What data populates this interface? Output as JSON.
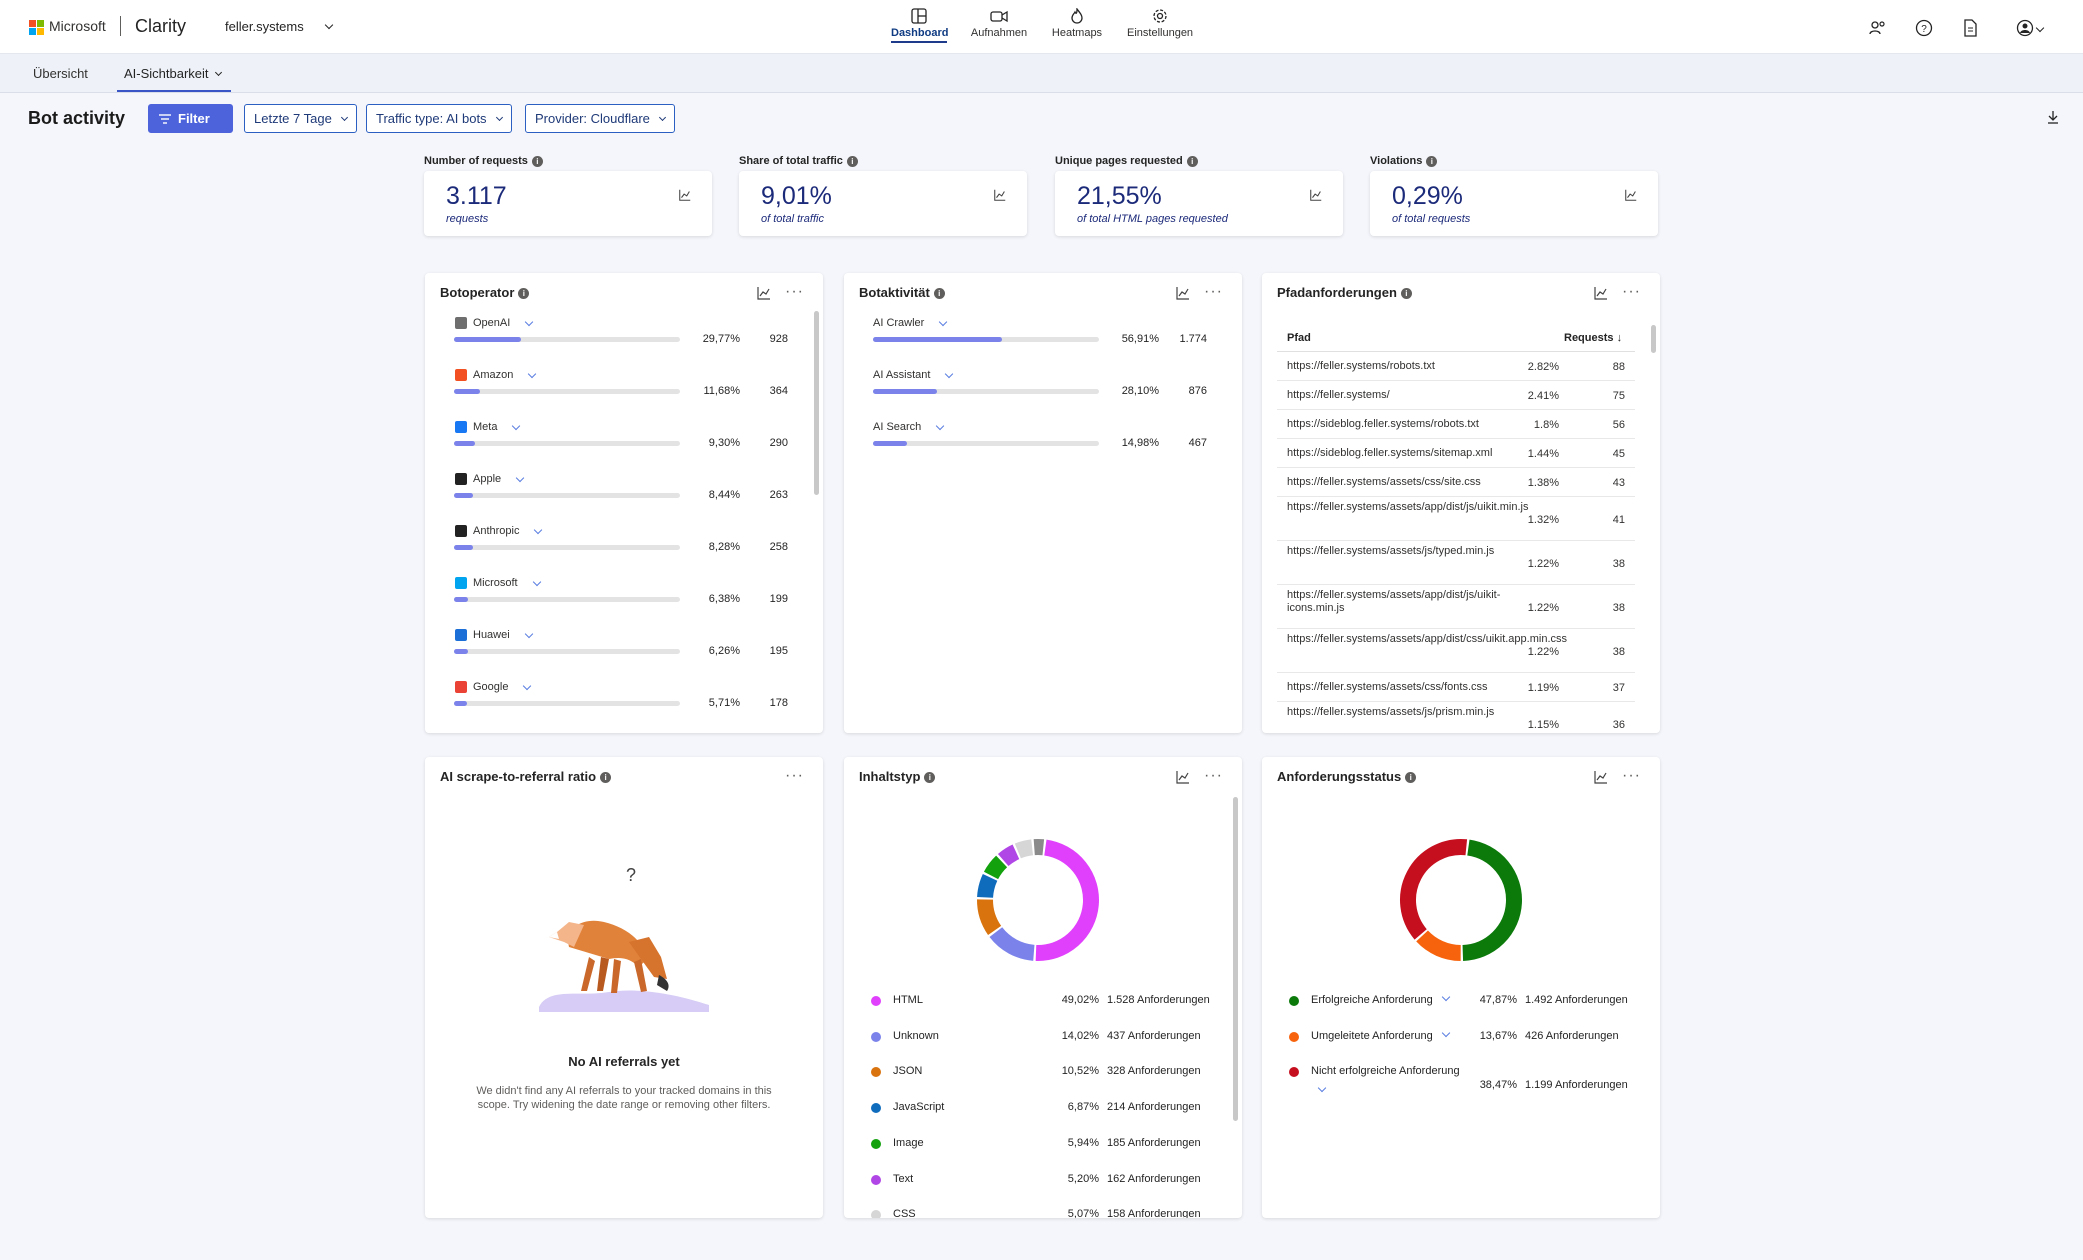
{
  "app": {
    "brand": "Microsoft",
    "name": "Clarity",
    "project": "feller.systems"
  },
  "nav": [
    {
      "label": "Dashboard",
      "icon": "dashboard-icon"
    },
    {
      "label": "Aufnahmen",
      "icon": "video-icon"
    },
    {
      "label": "Heatmaps",
      "icon": "flame-icon"
    },
    {
      "label": "Einstellungen",
      "icon": "gear-icon"
    }
  ],
  "tabs": {
    "overview": "Übersicht",
    "ai": "AI-Sichtbarkeit"
  },
  "page": {
    "title": "Bot activity"
  },
  "filters": {
    "filter": "Filter",
    "date": "Letzte 7 Tage",
    "traffic": "Traffic type: AI bots",
    "provider": "Provider: Cloudflare"
  },
  "kpis": [
    {
      "label": "Number of requests",
      "value": "3.117",
      "sub": "requests"
    },
    {
      "label": "Share of total traffic",
      "value": "9,01%",
      "sub": "of total traffic"
    },
    {
      "label": "Unique pages requested",
      "value": "21,55%",
      "sub": "of total HTML pages requested"
    },
    {
      "label": "Violations",
      "value": "0,29%",
      "sub": "of total requests"
    }
  ],
  "botoperator": {
    "title": "Botoperator",
    "rows": [
      {
        "name": "OpenAI",
        "pct": "29,77%",
        "count": "928",
        "share": 0.2977,
        "color": "#6e6e6e"
      },
      {
        "name": "Amazon",
        "pct": "11,68%",
        "count": "364",
        "share": 0.1168,
        "color": "#f25022"
      },
      {
        "name": "Meta",
        "pct": "9,30%",
        "count": "290",
        "share": 0.093,
        "color": "#1877f2"
      },
      {
        "name": "Apple",
        "pct": "8,44%",
        "count": "263",
        "share": 0.0844,
        "color": "#222222"
      },
      {
        "name": "Anthropic",
        "pct": "8,28%",
        "count": "258",
        "share": 0.0828,
        "color": "#222222"
      },
      {
        "name": "Microsoft",
        "pct": "6,38%",
        "count": "199",
        "share": 0.0638,
        "color": "#00a4ef"
      },
      {
        "name": "Huawei",
        "pct": "6,26%",
        "count": "195",
        "share": 0.0626,
        "color": "#1d6fd8"
      },
      {
        "name": "Google",
        "pct": "5,71%",
        "count": "178",
        "share": 0.0571,
        "color": "#ea4335"
      }
    ]
  },
  "botaktivitaet": {
    "title": "Botaktivität",
    "rows": [
      {
        "name": "AI Crawler",
        "pct": "56,91%",
        "count": "1.774",
        "share": 0.5691
      },
      {
        "name": "AI Assistant",
        "pct": "28,10%",
        "count": "876",
        "share": 0.281
      },
      {
        "name": "AI Search",
        "pct": "14,98%",
        "count": "467",
        "share": 0.1498
      }
    ]
  },
  "pfad": {
    "title": "Pfadanforderungen",
    "col_path": "Pfad",
    "col_req": "Requests",
    "rows": [
      {
        "path": "https://feller.systems/robots.txt",
        "share": "2.82%",
        "req": "88"
      },
      {
        "path": "https://feller.systems/",
        "share": "2.41%",
        "req": "75"
      },
      {
        "path": "https://sideblog.feller.systems/robots.txt",
        "share": "1.8%",
        "req": "56"
      },
      {
        "path": "https://sideblog.feller.systems/sitemap.xml",
        "share": "1.44%",
        "req": "45"
      },
      {
        "path": "https://feller.systems/assets/css/site.css",
        "share": "1.38%",
        "req": "43"
      },
      {
        "path": "https://feller.systems/assets/app/dist/js/uikit.min.js",
        "share": "1.32%",
        "req": "41"
      },
      {
        "path": "https://feller.systems/assets/js/typed.min.js",
        "share": "1.22%",
        "req": "38"
      },
      {
        "path": "https://feller.systems/assets/app/dist/js/uikit-icons.min.js",
        "share": "1.22%",
        "req": "38"
      },
      {
        "path": "https://feller.systems/assets/app/dist/css/uikit.app.min.css",
        "share": "1.22%",
        "req": "38"
      },
      {
        "path": "https://feller.systems/assets/css/fonts.css",
        "share": "1.19%",
        "req": "37"
      },
      {
        "path": "https://feller.systems/assets/js/prism.min.js",
        "share": "1.15%",
        "req": "36"
      }
    ]
  },
  "scrape": {
    "title": "AI scrape-to-referral ratio",
    "empty_title": "No AI referrals yet",
    "empty_text": "We didn't find any AI referrals to your tracked domains in this scope. Try widening the date range or removing other filters.",
    "question": "?"
  },
  "inhaltstyp": {
    "title": "Inhaltstyp",
    "rows": [
      {
        "name": "HTML",
        "pct": "49,02%",
        "count": "1.528 Anforderungen",
        "share": 0.4902,
        "color": "#e040fb"
      },
      {
        "name": "Unknown",
        "pct": "14,02%",
        "count": "437 Anforderungen",
        "share": 0.1402,
        "color": "#7b83eb"
      },
      {
        "name": "JSON",
        "pct": "10,52%",
        "count": "328 Anforderungen",
        "share": 0.1052,
        "color": "#d9730d"
      },
      {
        "name": "JavaScript",
        "pct": "6,87%",
        "count": "214 Anforderungen",
        "share": 0.0687,
        "color": "#0f6cbd"
      },
      {
        "name": "Image",
        "pct": "5,94%",
        "count": "185 Anforderungen",
        "share": 0.0594,
        "color": "#13a10e"
      },
      {
        "name": "Text",
        "pct": "5,20%",
        "count": "162 Anforderungen",
        "share": 0.052,
        "color": "#b146e6"
      },
      {
        "name": "CSS",
        "pct": "5,07%",
        "count": "158 Anforderungen",
        "share": 0.0507,
        "color": "#d6d6d6"
      }
    ],
    "rest": {
      "share": 0.0336,
      "color": "#8a8a8a"
    }
  },
  "status": {
    "title": "Anforderungsstatus",
    "rows": [
      {
        "name": "Erfolgreiche Anforderung",
        "pct": "47,87%",
        "count": "1.492 Anforderungen",
        "share": 0.4787,
        "color": "#0b7a0b"
      },
      {
        "name": "Umgeleitete Anforderung",
        "pct": "13,67%",
        "count": "426 Anforderungen",
        "share": 0.1367,
        "color": "#f7630c"
      },
      {
        "name": "Nicht erfolgreiche Anforderung",
        "pct": "38,47%",
        "count": "1.199 Anforderungen",
        "share": 0.3847,
        "color": "#c50f1f"
      }
    ]
  }
}
